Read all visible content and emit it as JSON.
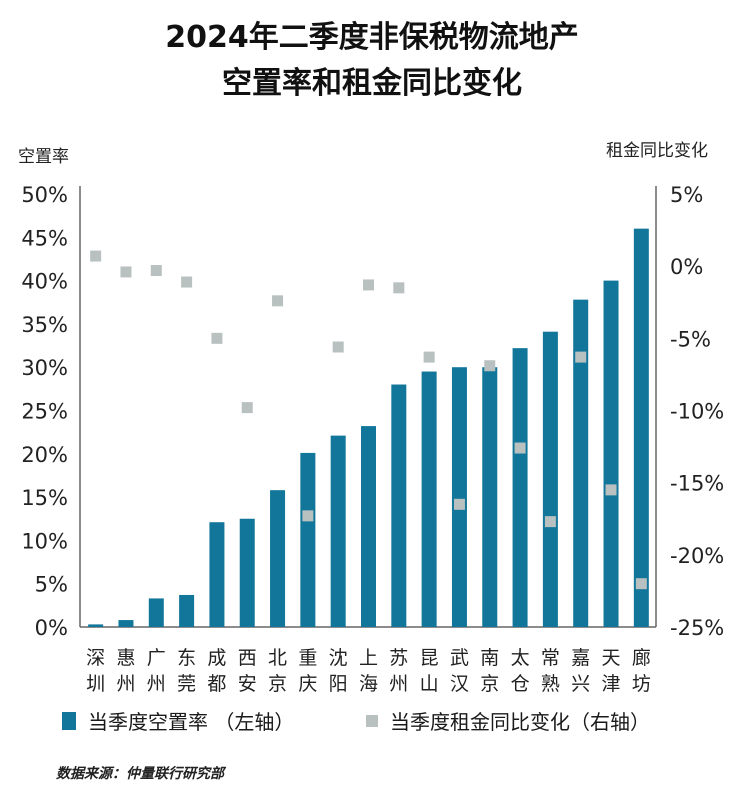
{
  "title_line1": "2024年二季度非保税物流地产",
  "title_line2": "空置率和租金同比变化",
  "source": "数据来源：仲量联行研究部",
  "colors": {
    "bar": "#11769a",
    "marker": "#b8c1c0",
    "axis": "#666666"
  },
  "chart_data": {
    "type": "bar",
    "title": "2024年二季度非保税物流地产空置率和租金同比变化",
    "ylabel_left": "空置率",
    "ylabel_right": "租金同比变化",
    "ylim_left": [
      0,
      50
    ],
    "ylim_right": [
      -25,
      5
    ],
    "yticks_left": [
      "0%",
      "5%",
      "10%",
      "15%",
      "20%",
      "25%",
      "30%",
      "35%",
      "40%",
      "45%",
      "50%"
    ],
    "yticks_right": [
      "-25%",
      "-20%",
      "-15%",
      "-10%",
      "-5%",
      "0%",
      "5%"
    ],
    "categories": [
      [
        "深",
        "圳"
      ],
      [
        "惠",
        "州"
      ],
      [
        "广",
        "州"
      ],
      [
        "东",
        "莞"
      ],
      [
        "成",
        "都"
      ],
      [
        "西",
        "安"
      ],
      [
        "北",
        "京"
      ],
      [
        "重",
        "庆"
      ],
      [
        "沈",
        "阳"
      ],
      [
        "上",
        "海"
      ],
      [
        "苏",
        "州"
      ],
      [
        "昆",
        "山"
      ],
      [
        "武",
        "汉"
      ],
      [
        "南",
        "京"
      ],
      [
        "太",
        "仓"
      ],
      [
        "常",
        "熟"
      ],
      [
        "嘉",
        "兴"
      ],
      [
        "天",
        "津"
      ],
      [
        "廊",
        "坊"
      ]
    ],
    "series": [
      {
        "name": "当季度空置率 （左轴）",
        "type": "bar",
        "axis": "left",
        "values": [
          0.3,
          0.8,
          3.3,
          3.7,
          12.1,
          12.5,
          15.8,
          20.1,
          22.1,
          23.2,
          28.0,
          29.5,
          30.0,
          30.0,
          32.2,
          34.1,
          37.8,
          40.0,
          46.0
        ]
      },
      {
        "name": "当季度租金同比变化（右轴）",
        "type": "scatter",
        "axis": "right",
        "values": [
          0.7,
          -0.4,
          -0.3,
          -1.1,
          -5.0,
          -9.8,
          -2.4,
          -17.3,
          -5.6,
          -1.3,
          -1.5,
          -6.3,
          -16.5,
          -6.9,
          -12.6,
          -17.7,
          -6.3,
          -15.5,
          -22.0
        ]
      }
    ],
    "legend_position": "bottom",
    "grid": false
  }
}
